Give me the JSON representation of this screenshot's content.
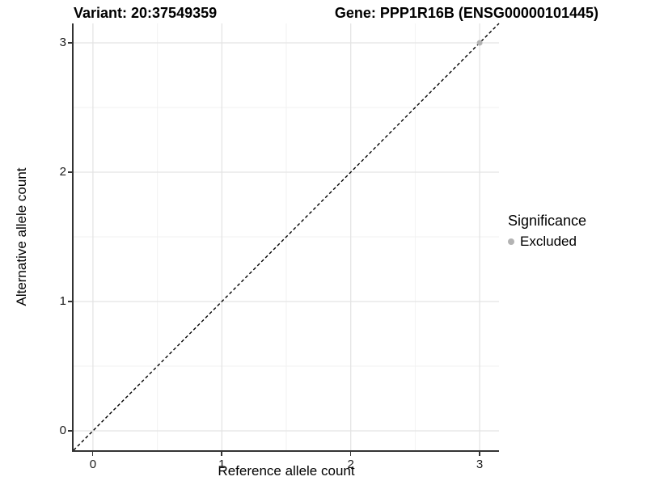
{
  "header": {
    "variant_title": "Variant: 20:37549359",
    "gene_title": "Gene: PPP1R16B (ENSG00000101445)"
  },
  "chart_data": {
    "type": "scatter",
    "title": "Variant: 20:37549359   Gene: PPP1R16B (ENSG00000101445)",
    "xlabel": "Reference allele count",
    "ylabel": "Alternative allele count",
    "xlim": [
      -0.15,
      3.15
    ],
    "ylim": [
      -0.15,
      3.15
    ],
    "x_ticks": [
      0,
      1,
      2,
      3
    ],
    "y_ticks": [
      0,
      1,
      2,
      3
    ],
    "x_minor_ticks": [
      0.5,
      1.5,
      2.5
    ],
    "y_minor_ticks": [
      0.5,
      1.5,
      2.5
    ],
    "grid": "major+minor",
    "identity_line": {
      "slope": 1,
      "intercept": 0,
      "style": "dashed",
      "color": "#000000"
    },
    "series": [
      {
        "name": "Excluded",
        "color": "#b3b3b3",
        "marker": "circle",
        "points": [
          {
            "x": 3,
            "y": 3
          }
        ]
      }
    ],
    "legend": {
      "title": "Significance",
      "position": "right",
      "items": [
        {
          "label": "Excluded",
          "color": "#b3b3b3",
          "marker": "circle"
        }
      ]
    }
  },
  "colors": {
    "background": "#ffffff",
    "grid_major": "#e4e4e4",
    "grid_minor": "#f2f2f2",
    "axis_line": "#333333",
    "text": "#000000",
    "excluded_point": "#b3b3b3"
  }
}
